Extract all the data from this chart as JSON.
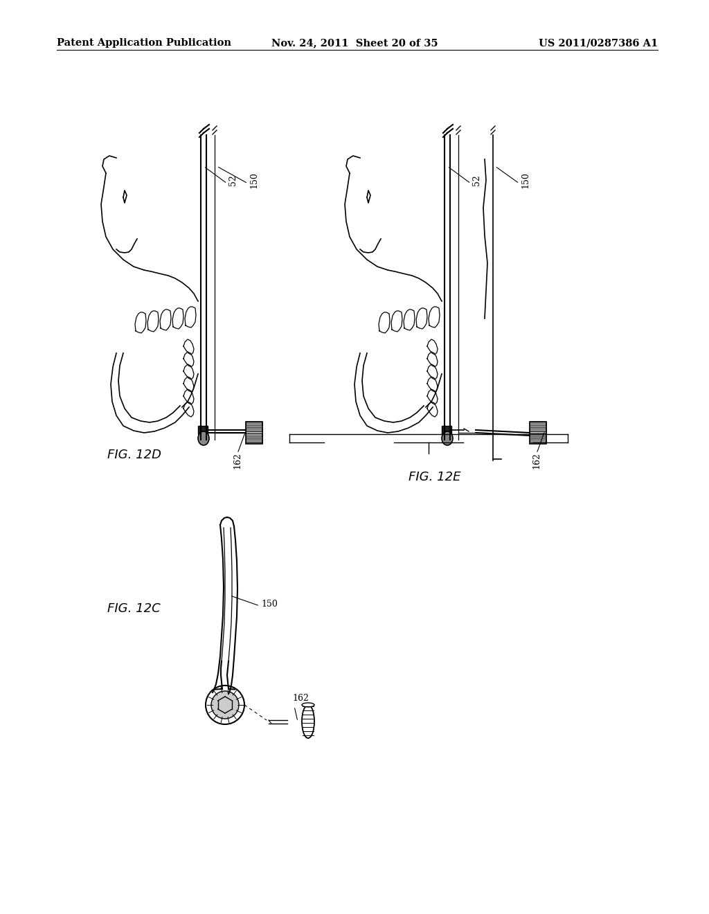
{
  "background_color": "#ffffff",
  "header_left": "Patent Application Publication",
  "header_center": "Nov. 24, 2011  Sheet 20 of 35",
  "header_right": "US 2011/0287386 A1",
  "fig_label_fs": 13,
  "ref_fs": 9,
  "header_fs": 10.5
}
